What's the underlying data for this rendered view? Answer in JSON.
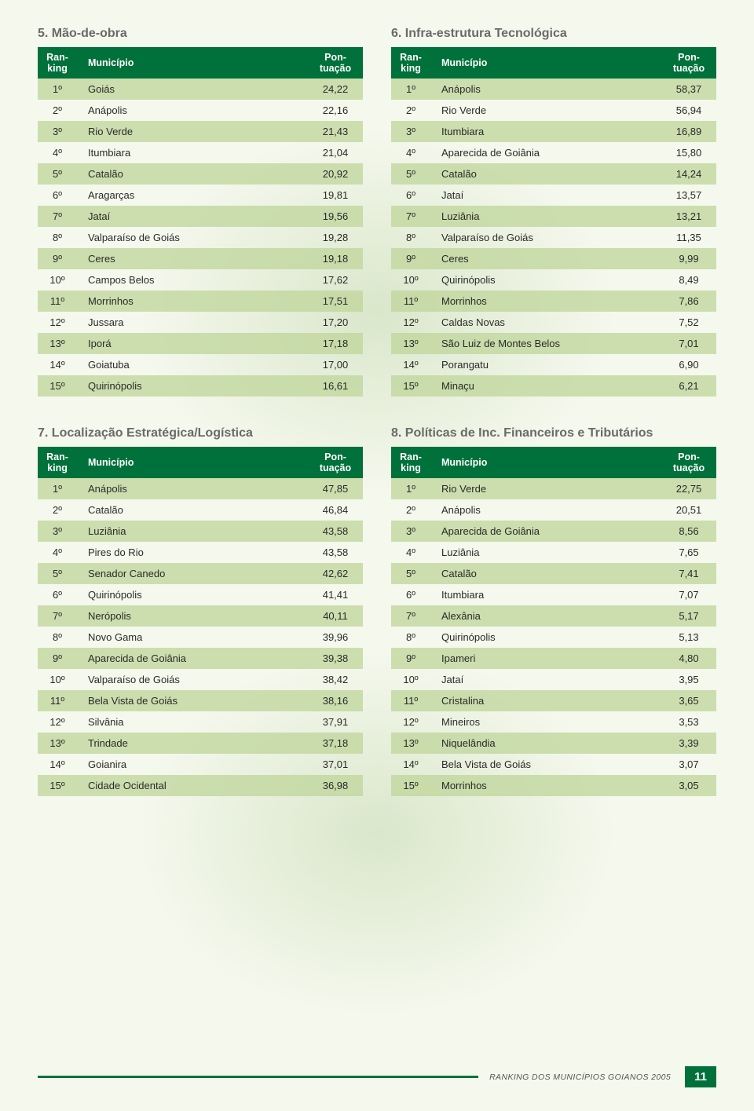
{
  "style": {
    "table_header_bg": "#00713a",
    "table_header_fg": "#ffffff",
    "stripe_bg": "rgba(192,214,156,0.78)",
    "title_color": "#6a6a6a",
    "body_text_color": "#2a2a2a",
    "page_bg": "#f5f8ed",
    "font_family": "Arial",
    "title_fontsize_pt": 12,
    "header_fontsize_pt": 9.5,
    "body_fontsize_pt": 10
  },
  "table_headers": {
    "ranking_line1": "Ran-",
    "ranking_line2": "king",
    "municipio": "Município",
    "pontuacao_line1": "Pon-",
    "pontuacao_line2": "tuação"
  },
  "tables": [
    {
      "number": "5.",
      "title": "Mão-de-obra",
      "rows": [
        {
          "rank": "1º",
          "mun": "Goiás",
          "pon": "24,22"
        },
        {
          "rank": "2º",
          "mun": "Anápolis",
          "pon": "22,16"
        },
        {
          "rank": "3º",
          "mun": "Rio Verde",
          "pon": "21,43"
        },
        {
          "rank": "4º",
          "mun": "Itumbiara",
          "pon": "21,04"
        },
        {
          "rank": "5º",
          "mun": "Catalão",
          "pon": "20,92"
        },
        {
          "rank": "6º",
          "mun": "Aragarças",
          "pon": "19,81"
        },
        {
          "rank": "7º",
          "mun": "Jataí",
          "pon": "19,56"
        },
        {
          "rank": "8º",
          "mun": "Valparaíso de Goiás",
          "pon": "19,28"
        },
        {
          "rank": "9º",
          "mun": "Ceres",
          "pon": "19,18"
        },
        {
          "rank": "10º",
          "mun": "Campos Belos",
          "pon": "17,62"
        },
        {
          "rank": "11º",
          "mun": "Morrinhos",
          "pon": "17,51"
        },
        {
          "rank": "12º",
          "mun": "Jussara",
          "pon": "17,20"
        },
        {
          "rank": "13º",
          "mun": "Iporá",
          "pon": "17,18"
        },
        {
          "rank": "14º",
          "mun": "Goiatuba",
          "pon": "17,00"
        },
        {
          "rank": "15º",
          "mun": "Quirinópolis",
          "pon": "16,61"
        }
      ]
    },
    {
      "number": "6.",
      "title": "Infra-estrutura Tecnológica",
      "rows": [
        {
          "rank": "1º",
          "mun": "Anápolis",
          "pon": "58,37"
        },
        {
          "rank": "2º",
          "mun": "Rio Verde",
          "pon": "56,94"
        },
        {
          "rank": "3º",
          "mun": "Itumbiara",
          "pon": "16,89"
        },
        {
          "rank": "4º",
          "mun": "Aparecida de Goiânia",
          "pon": "15,80"
        },
        {
          "rank": "5º",
          "mun": "Catalão",
          "pon": "14,24"
        },
        {
          "rank": "6º",
          "mun": "Jataí",
          "pon": "13,57"
        },
        {
          "rank": "7º",
          "mun": "Luziânia",
          "pon": "13,21"
        },
        {
          "rank": "8º",
          "mun": "Valparaíso de Goiás",
          "pon": "11,35"
        },
        {
          "rank": "9º",
          "mun": "Ceres",
          "pon": "9,99"
        },
        {
          "rank": "10º",
          "mun": "Quirinópolis",
          "pon": "8,49"
        },
        {
          "rank": "11º",
          "mun": "Morrinhos",
          "pon": "7,86"
        },
        {
          "rank": "12º",
          "mun": "Caldas Novas",
          "pon": "7,52"
        },
        {
          "rank": "13º",
          "mun": "São Luiz de Montes Belos",
          "pon": "7,01"
        },
        {
          "rank": "14º",
          "mun": "Porangatu",
          "pon": "6,90"
        },
        {
          "rank": "15º",
          "mun": "Minaçu",
          "pon": "6,21"
        }
      ]
    },
    {
      "number": "7.",
      "title": "Localização Estratégica/Logística",
      "rows": [
        {
          "rank": "1º",
          "mun": "Anápolis",
          "pon": "47,85"
        },
        {
          "rank": "2º",
          "mun": "Catalão",
          "pon": "46,84"
        },
        {
          "rank": "3º",
          "mun": "Luziânia",
          "pon": "43,58"
        },
        {
          "rank": "4º",
          "mun": "Pires do Rio",
          "pon": "43,58"
        },
        {
          "rank": "5º",
          "mun": "Senador Canedo",
          "pon": "42,62"
        },
        {
          "rank": "6º",
          "mun": "Quirinópolis",
          "pon": "41,41"
        },
        {
          "rank": "7º",
          "mun": "Nerópolis",
          "pon": "40,11"
        },
        {
          "rank": "8º",
          "mun": "Novo Gama",
          "pon": "39,96"
        },
        {
          "rank": "9º",
          "mun": "Aparecida de Goiânia",
          "pon": "39,38"
        },
        {
          "rank": "10º",
          "mun": "Valparaíso de Goiás",
          "pon": "38,42"
        },
        {
          "rank": "11º",
          "mun": "Bela Vista de Goiás",
          "pon": "38,16"
        },
        {
          "rank": "12º",
          "mun": "Silvânia",
          "pon": "37,91"
        },
        {
          "rank": "13º",
          "mun": "Trindade",
          "pon": "37,18"
        },
        {
          "rank": "14º",
          "mun": "Goianira",
          "pon": "37,01"
        },
        {
          "rank": "15º",
          "mun": "Cidade Ocidental",
          "pon": "36,98"
        }
      ]
    },
    {
      "number": "8.",
      "title": "Políticas de Inc. Financeiros e Tributários",
      "rows": [
        {
          "rank": "1º",
          "mun": "Rio Verde",
          "pon": "22,75"
        },
        {
          "rank": "2º",
          "mun": "Anápolis",
          "pon": "20,51"
        },
        {
          "rank": "3º",
          "mun": "Aparecida de Goiânia",
          "pon": "8,56"
        },
        {
          "rank": "4º",
          "mun": "Luziânia",
          "pon": "7,65"
        },
        {
          "rank": "5º",
          "mun": "Catalão",
          "pon": "7,41"
        },
        {
          "rank": "6º",
          "mun": "Itumbiara",
          "pon": "7,07"
        },
        {
          "rank": "7º",
          "mun": "Alexânia",
          "pon": "5,17"
        },
        {
          "rank": "8º",
          "mun": "Quirinópolis",
          "pon": "5,13"
        },
        {
          "rank": "9º",
          "mun": "Ipameri",
          "pon": "4,80"
        },
        {
          "rank": "10º",
          "mun": "Jataí",
          "pon": "3,95"
        },
        {
          "rank": "11º",
          "mun": "Cristalina",
          "pon": "3,65"
        },
        {
          "rank": "12º",
          "mun": "Mineiros",
          "pon": "3,53"
        },
        {
          "rank": "13º",
          "mun": "Niquelândia",
          "pon": "3,39"
        },
        {
          "rank": "14º",
          "mun": "Bela Vista de Goiás",
          "pon": "3,07"
        },
        {
          "rank": "15º",
          "mun": "Morrinhos",
          "pon": "3,05"
        }
      ]
    }
  ],
  "footer": {
    "text": "RANKING DOS MUNICÍPIOS GOIANOS 2005",
    "page": "11",
    "line_color": "#00713a",
    "page_bg": "#00713a",
    "page_fg": "#ffffff"
  }
}
